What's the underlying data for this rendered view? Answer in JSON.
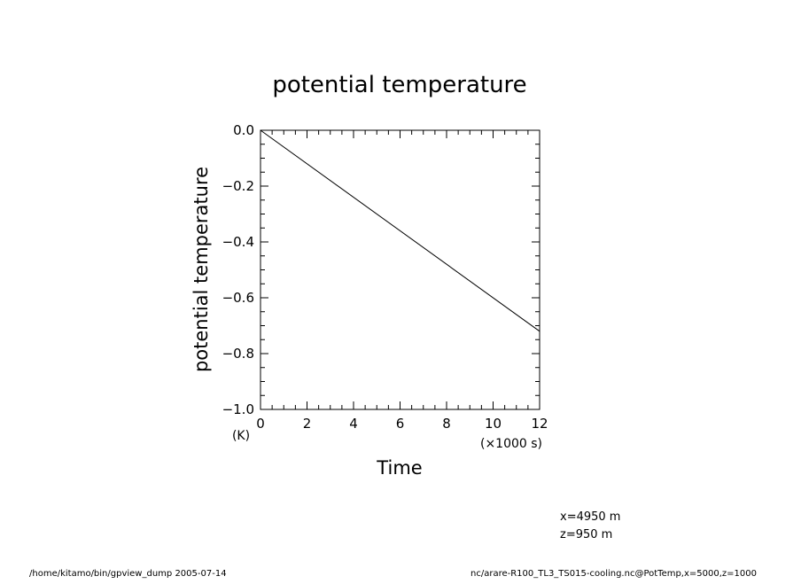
{
  "chart_data": {
    "type": "line",
    "title": "potential temperature",
    "xlabel": "Time",
    "xunit": "(×1000 s)",
    "ylabel": "potential temperature",
    "yunit": "(K)",
    "xlim": [
      0,
      12
    ],
    "ylim": [
      -1.0,
      0.0
    ],
    "xticks": [
      0,
      2,
      4,
      6,
      8,
      10,
      12
    ],
    "xtick_labels": [
      "0",
      "2",
      "4",
      "6",
      "8",
      "10",
      "12"
    ],
    "yticks": [
      0.0,
      -0.2,
      -0.4,
      -0.6,
      -0.8,
      -1.0
    ],
    "ytick_labels": [
      "0.0",
      "−0.2",
      "−0.4",
      "−0.6",
      "−0.8",
      "−1.0"
    ],
    "grid": false,
    "series": [
      {
        "x": [
          0,
          12
        ],
        "y": [
          0.0,
          -0.72
        ]
      }
    ]
  },
  "info": {
    "line1": "x=4950  m",
    "line2": "z=950  m"
  },
  "footer": {
    "left": "/home/kitamo/bin/gpview_dump   2005-07-14",
    "right": "nc/arare-R100_TL3_TS015-cooling.nc@PotTemp,x=5000,z=1000"
  }
}
